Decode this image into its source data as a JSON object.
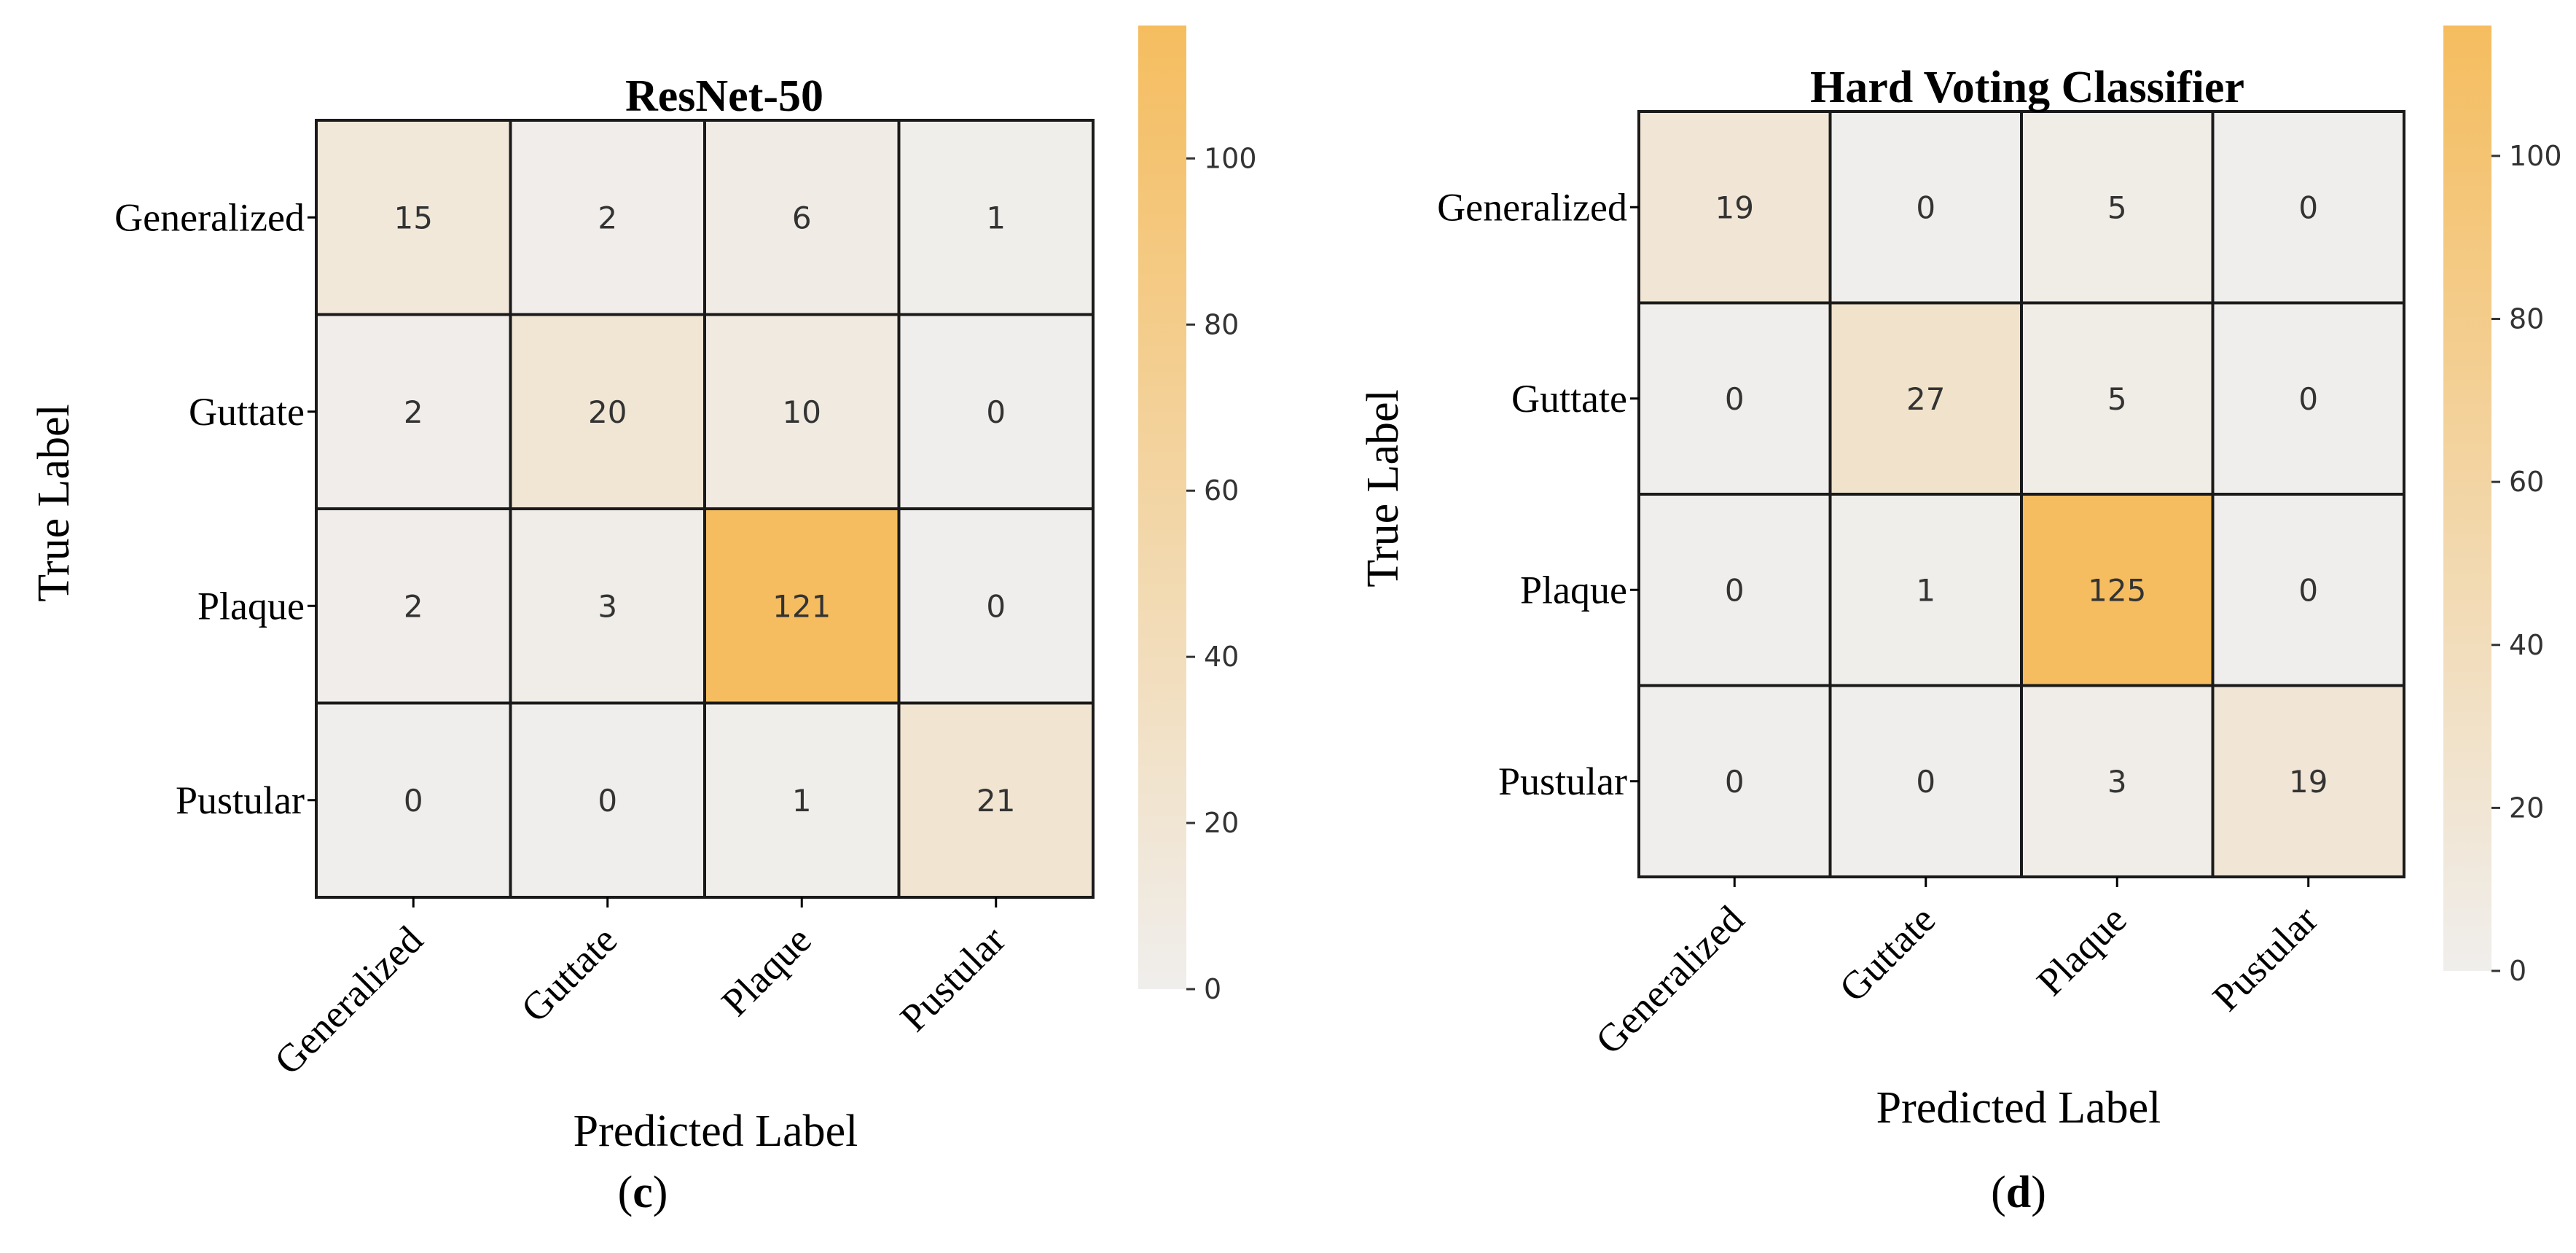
{
  "figure": {
    "panels": [
      {
        "label_open": "(",
        "label_letter": "c",
        "label_close": ")"
      },
      {
        "label_open": "(",
        "label_letter": "d",
        "label_close": ")"
      }
    ]
  },
  "colors": {
    "low": "#f0eeec",
    "high": "#f5bd5f",
    "grid": "#1a1a1a"
  },
  "chart_data": [
    {
      "type": "heatmap",
      "title": "ResNet-50",
      "xlabel": "Predicted Label",
      "ylabel": "True Label",
      "x_categories": [
        "Generalized",
        "Guttate",
        "Plaque",
        "Pustular"
      ],
      "y_categories": [
        "Generalized",
        "Guttate",
        "Plaque",
        "Pustular"
      ],
      "values": [
        [
          15,
          2,
          6,
          1
        ],
        [
          2,
          20,
          10,
          0
        ],
        [
          2,
          3,
          121,
          0
        ],
        [
          0,
          0,
          1,
          21
        ]
      ],
      "colorbar": {
        "min": 0,
        "max": 116,
        "ticks": [
          0,
          20,
          40,
          60,
          80,
          100
        ]
      }
    },
    {
      "type": "heatmap",
      "title": "Hard Voting Classifier",
      "xlabel": "Predicted Label",
      "ylabel": "True Label",
      "x_categories": [
        "Generalized",
        "Guttate",
        "Plaque",
        "Pustular"
      ],
      "y_categories": [
        "Generalized",
        "Guttate",
        "Plaque",
        "Pustular"
      ],
      "values": [
        [
          19,
          0,
          5,
          0
        ],
        [
          0,
          27,
          5,
          0
        ],
        [
          0,
          1,
          125,
          0
        ],
        [
          0,
          0,
          3,
          19
        ]
      ],
      "colorbar": {
        "min": 0,
        "max": 116,
        "ticks": [
          0,
          20,
          40,
          60,
          80,
          100
        ]
      }
    }
  ]
}
